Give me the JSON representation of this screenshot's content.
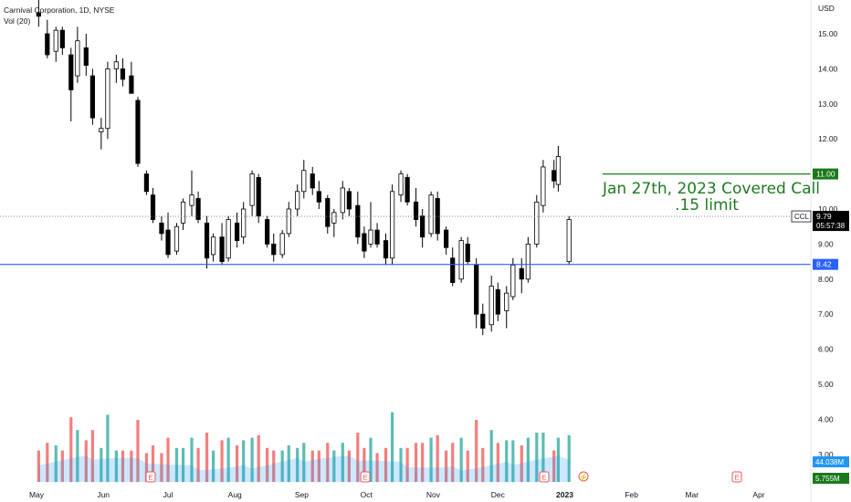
{
  "header": {
    "title": "Carnival Corporation, 1D, NYSE",
    "volume_label": "Vol (20)"
  },
  "annotation": {
    "line1": "Jan 27th, 2023 Covered Call",
    "line2": ".15 limit"
  },
  "colors": {
    "up": "#ffffff",
    "down": "#000000",
    "wick": "#000000",
    "support_line": "#2962ff",
    "target_line": "#1b7a1b",
    "price_line": "#787b86",
    "vol_up": "#26a69a",
    "vol_down": "#ef5350",
    "vol_ma": "#2196f3"
  },
  "chart_data": {
    "type": "candlestick",
    "title": "Carnival Corporation, 1D, NYSE",
    "y_axis": {
      "unit": "USD",
      "ticks": [
        "15.00",
        "14.00",
        "13.00",
        "12.00",
        "11.00",
        "10.00",
        "9.00",
        "8.00",
        "7.00",
        "6.00",
        "5.00",
        "4.00",
        "3.00"
      ],
      "range": [
        2.6,
        16.0
      ]
    },
    "x_axis": {
      "ticks": [
        "May",
        "Jun",
        "Jul",
        "Aug",
        "Sep",
        "Oct",
        "Nov",
        "Dec",
        "2023",
        "Feb",
        "Mar",
        "Apr"
      ],
      "range": [
        "2022-04-28",
        "2023-04-28"
      ]
    },
    "price_labels": [
      {
        "name": "target",
        "value": 11.0,
        "text": "11.00"
      },
      {
        "name": "CCL",
        "value": 9.79,
        "text": "9.79",
        "countdown": "05:57:38"
      },
      {
        "name": "support",
        "value": 8.42,
        "text": "8.42"
      }
    ],
    "levels": {
      "target": 11.0,
      "last": 9.79,
      "support": 8.42
    },
    "volume_labels": {
      "ma": "44.038M",
      "last": "5.755M"
    },
    "events": [
      "E",
      "E",
      "E",
      "E"
    ],
    "ohlc": [
      [
        "2022-05-02",
        15.6,
        16.0,
        15.2,
        15.5
      ],
      [
        "2022-05-06",
        15.0,
        15.4,
        14.3,
        14.4
      ],
      [
        "2022-05-10",
        14.5,
        15.2,
        14.2,
        15.1
      ],
      [
        "2022-05-13",
        15.1,
        15.2,
        14.4,
        14.6
      ],
      [
        "2022-05-17",
        14.4,
        14.6,
        12.5,
        13.4
      ],
      [
        "2022-05-20",
        13.8,
        15.2,
        13.6,
        14.8
      ],
      [
        "2022-05-24",
        14.6,
        15.0,
        13.8,
        14.1
      ],
      [
        "2022-05-27",
        13.8,
        14.0,
        12.4,
        12.6
      ],
      [
        "2022-05-31",
        12.2,
        12.6,
        11.7,
        12.3
      ],
      [
        "2022-06-03",
        12.3,
        14.2,
        12.0,
        14.0
      ],
      [
        "2022-06-07",
        14.0,
        14.4,
        13.6,
        14.2
      ],
      [
        "2022-06-10",
        14.0,
        14.3,
        13.5,
        13.7
      ],
      [
        "2022-06-14",
        13.8,
        14.2,
        13.4,
        13.3
      ],
      [
        "2022-06-17",
        13.1,
        13.2,
        11.2,
        11.3
      ],
      [
        "2022-06-21",
        11.0,
        11.1,
        10.4,
        10.5
      ],
      [
        "2022-06-24",
        10.4,
        10.6,
        9.6,
        9.7
      ],
      [
        "2022-06-28",
        9.6,
        9.8,
        9.1,
        9.3
      ],
      [
        "2022-07-01",
        9.4,
        9.9,
        8.6,
        8.7
      ],
      [
        "2022-07-05",
        8.8,
        9.6,
        8.7,
        9.5
      ],
      [
        "2022-07-08",
        9.6,
        10.3,
        9.4,
        10.2
      ],
      [
        "2022-07-12",
        10.1,
        11.1,
        9.8,
        10.4
      ],
      [
        "2022-07-15",
        10.3,
        10.5,
        9.6,
        9.7
      ],
      [
        "2022-07-19",
        9.6,
        9.8,
        8.3,
        8.6
      ],
      [
        "2022-07-22",
        8.7,
        9.3,
        8.5,
        9.2
      ],
      [
        "2022-07-26",
        9.2,
        9.6,
        8.4,
        8.5
      ],
      [
        "2022-07-29",
        8.6,
        9.8,
        8.5,
        9.7
      ],
      [
        "2022-08-02",
        9.6,
        9.9,
        8.9,
        9.1
      ],
      [
        "2022-08-05",
        9.2,
        10.2,
        9.0,
        10.0
      ],
      [
        "2022-08-09",
        10.1,
        11.1,
        9.8,
        11.0
      ],
      [
        "2022-08-12",
        10.9,
        11.0,
        9.6,
        9.8
      ],
      [
        "2022-08-16",
        9.7,
        9.8,
        8.9,
        9.0
      ],
      [
        "2022-08-19",
        9.0,
        9.3,
        8.5,
        8.7
      ],
      [
        "2022-08-23",
        8.7,
        9.4,
        8.6,
        9.3
      ],
      [
        "2022-08-26",
        9.3,
        10.2,
        9.2,
        10.0
      ],
      [
        "2022-08-30",
        10.0,
        10.7,
        9.8,
        10.5
      ],
      [
        "2022-09-02",
        10.5,
        11.4,
        10.3,
        11.1
      ],
      [
        "2022-09-06",
        11.0,
        11.2,
        10.4,
        10.6
      ],
      [
        "2022-09-09",
        10.5,
        10.8,
        10.0,
        10.2
      ],
      [
        "2022-09-13",
        10.3,
        10.4,
        9.3,
        9.5
      ],
      [
        "2022-09-16",
        9.6,
        10.0,
        9.2,
        9.9
      ],
      [
        "2022-09-20",
        9.9,
        10.8,
        9.7,
        10.6
      ],
      [
        "2022-09-23",
        10.5,
        10.6,
        9.8,
        10.0
      ],
      [
        "2022-09-27",
        10.1,
        10.5,
        9.0,
        9.2
      ],
      [
        "2022-09-30",
        9.3,
        9.5,
        8.6,
        8.8
      ],
      [
        "2022-10-03",
        9.0,
        10.2,
        8.9,
        9.4
      ],
      [
        "2022-10-06",
        9.4,
        9.6,
        8.9,
        9.0
      ],
      [
        "2022-10-10",
        9.1,
        9.3,
        8.4,
        8.6
      ],
      [
        "2022-10-13",
        8.6,
        10.7,
        8.4,
        10.5
      ],
      [
        "2022-10-17",
        10.4,
        11.1,
        10.2,
        11.0
      ],
      [
        "2022-10-20",
        10.9,
        11.0,
        10.1,
        10.2
      ],
      [
        "2022-10-24",
        10.2,
        10.6,
        9.5,
        9.7
      ],
      [
        "2022-10-27",
        9.8,
        10.0,
        8.9,
        9.2
      ],
      [
        "2022-10-31",
        9.3,
        10.5,
        9.2,
        10.4
      ],
      [
        "2022-11-03",
        10.3,
        10.5,
        9.1,
        9.3
      ],
      [
        "2022-11-07",
        9.4,
        9.5,
        8.7,
        8.9
      ],
      [
        "2022-11-10",
        8.6,
        8.9,
        7.8,
        7.9
      ],
      [
        "2022-11-14",
        8.0,
        9.2,
        7.9,
        9.1
      ],
      [
        "2022-11-17",
        9.0,
        9.2,
        8.4,
        8.5
      ],
      [
        "2022-11-21",
        8.4,
        8.6,
        6.6,
        7.0
      ],
      [
        "2022-11-24",
        7.0,
        7.3,
        6.4,
        6.6
      ],
      [
        "2022-11-28",
        6.7,
        8.1,
        6.5,
        7.8
      ],
      [
        "2022-12-01",
        7.7,
        7.9,
        6.8,
        7.0
      ],
      [
        "2022-12-05",
        7.1,
        7.8,
        6.6,
        7.6
      ],
      [
        "2022-12-08",
        7.5,
        8.6,
        7.4,
        8.4
      ],
      [
        "2022-12-12",
        8.3,
        8.6,
        7.6,
        8.0
      ],
      [
        "2022-12-15",
        8.0,
        9.2,
        7.9,
        9.0
      ],
      [
        "2022-12-19",
        9.0,
        10.4,
        8.9,
        10.2
      ],
      [
        "2022-12-22",
        10.1,
        11.4,
        9.9,
        11.2
      ],
      [
        "2022-12-27",
        11.1,
        11.4,
        10.6,
        10.8
      ],
      [
        "2022-12-29",
        10.7,
        11.8,
        10.5,
        11.5
      ],
      [
        "2023-01-03",
        8.5,
        9.8,
        8.4,
        9.7
      ]
    ]
  }
}
